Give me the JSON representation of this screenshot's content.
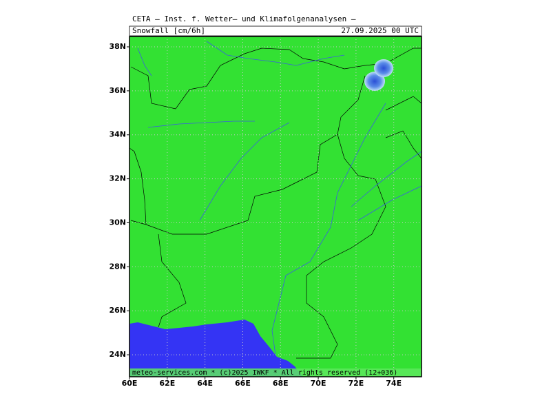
{
  "header": {
    "title": "CETA — Inst. f. Wetter— und Klimafolgenanalysen —",
    "variable": "Snowfall [cm/6h]",
    "valid_time": "27.09.2025 00 UTC"
  },
  "map": {
    "lonlim": [
      60,
      75.47
    ],
    "latlim": [
      23,
      38.47
    ],
    "lon_ticks": [
      {
        "value": 60,
        "label": "60E"
      },
      {
        "value": 62,
        "label": "62E"
      },
      {
        "value": 64,
        "label": "64E"
      },
      {
        "value": 66,
        "label": "66E"
      },
      {
        "value": 68,
        "label": "68E"
      },
      {
        "value": 70,
        "label": "70E"
      },
      {
        "value": 72,
        "label": "72E"
      },
      {
        "value": 74,
        "label": "74E"
      }
    ],
    "lat_ticks": [
      {
        "value": 24,
        "label": "24N"
      },
      {
        "value": 26,
        "label": "26N"
      },
      {
        "value": 28,
        "label": "28N"
      },
      {
        "value": 30,
        "label": "30N"
      },
      {
        "value": 32,
        "label": "32N"
      },
      {
        "value": 34,
        "label": "34N"
      },
      {
        "value": 36,
        "label": "36N"
      },
      {
        "value": 38,
        "label": "38N"
      }
    ],
    "grid": true
  },
  "footer": "meteo-services.com * (c)2025 IWKF * All rights reserved (12+036)"
}
